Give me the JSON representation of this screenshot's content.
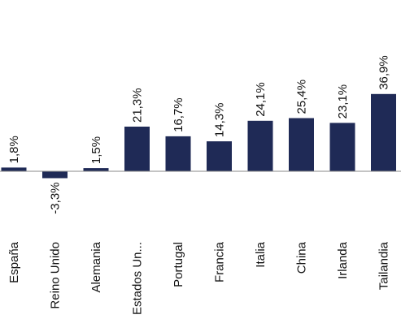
{
  "chart_data": {
    "type": "bar",
    "categories": [
      "España",
      "Reino Unido",
      "Alemania",
      "Estados Un...",
      "Portugal",
      "Francia",
      "Italia",
      "China",
      "Irlanda",
      "Tailandia"
    ],
    "values": [
      1.8,
      -3.3,
      1.5,
      21.3,
      16.7,
      14.3,
      24.1,
      25.4,
      23.1,
      36.9
    ],
    "data_labels": [
      "1,8%",
      "-3,3%",
      "1,5%",
      "21,3%",
      "16,7%",
      "14,3%",
      "24,1%",
      "25,4%",
      "23,1%",
      "36,9%"
    ],
    "title": "",
    "xlabel": "",
    "ylabel": "",
    "ylim": [
      -3.3,
      36.9
    ],
    "grid": false,
    "legend": "none",
    "bar_color": "#1f2a56"
  }
}
